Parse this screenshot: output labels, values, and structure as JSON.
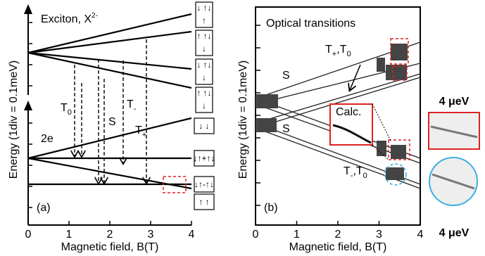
{
  "panel_a": {
    "label": "(a)",
    "title": "Exciton, X",
    "title_sup": "2-",
    "lower_label": "2e",
    "y_label": "Energy (1div = 0.1meV)",
    "x_label": "Magnetic field, B(T)",
    "x_ticks": [
      "0",
      "1",
      "2",
      "3",
      "4"
    ],
    "transitions": [
      {
        "main": "T",
        "sub": "0"
      },
      {
        "main": "S"
      },
      {
        "main": "T",
        "sub": "-"
      },
      {
        "main": "T",
        "sub": "+"
      }
    ],
    "spin_states": [
      {
        "top": "↓ ↑↓",
        "bottom": "↑"
      },
      {
        "top": "↑ ↑↓",
        "bottom": "↓"
      },
      {
        "top": "↓ ↑↓",
        "bottom": "↓"
      },
      {
        "top": "↑ ↑↓",
        "bottom": "↓"
      },
      {
        "top": "↓ ↓"
      },
      {
        "top": "↓↑+↑↓"
      },
      {
        "top": "↓↑-↑↓"
      },
      {
        "top": "↑ ↑"
      }
    ]
  },
  "panel_b": {
    "label": "(b)",
    "title": "Optical transitions",
    "y_label": "Energy (1div = 0.1meV)",
    "x_label": "Magnetic field, B(T)",
    "x_ticks": [
      "0",
      "1",
      "2",
      "3",
      "4"
    ],
    "upper_pair": [
      {
        "main": "T",
        "sub": "+"
      },
      {
        "main": ",T",
        "sub": "0"
      }
    ],
    "lower_pair": [
      {
        "main": "T",
        "sub": "-"
      },
      {
        "main": ",T",
        "sub": "0"
      }
    ],
    "singlet_labels": [
      "S",
      "S"
    ],
    "inset_label": "Calc.",
    "linewidths": [
      "4 μeV",
      "4 μeV"
    ]
  }
}
